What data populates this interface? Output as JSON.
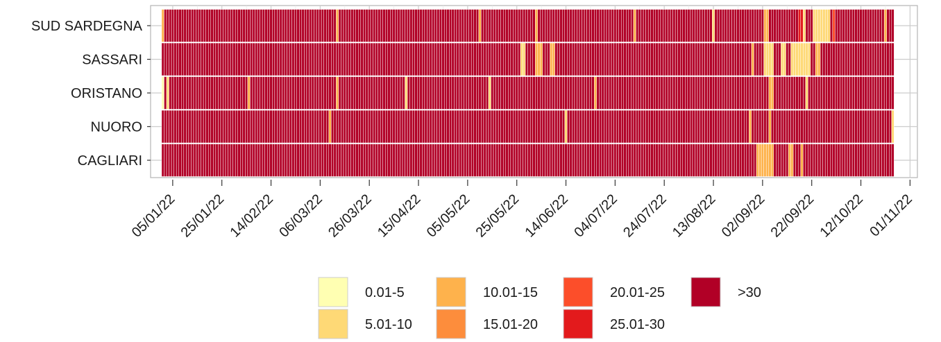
{
  "chart_data": {
    "type": "heatmap",
    "title": "",
    "xlabel": "",
    "ylabel": "",
    "rows": [
      "SUD SARDEGNA",
      "SASSARI",
      "ORISTANO",
      "NUORO",
      "CAGLIARI"
    ],
    "x_ticks": [
      "05/01/22",
      "25/01/22",
      "14/02/22",
      "06/03/22",
      "26/03/22",
      "15/04/22",
      "05/05/22",
      "25/05/22",
      "14/06/22",
      "04/07/22",
      "24/07/22",
      "13/08/22",
      "02/09/22",
      "22/09/22",
      "12/10/22",
      "01/11/22"
    ],
    "x_range": [
      "2021-12-27",
      "2022-11-04"
    ],
    "date_range": [
      "2022-01-01",
      "2022-10-25"
    ],
    "grid": true,
    "legend_position": "bottom",
    "color_scale": [
      {
        "label": "0.01-5",
        "color": "#ffffb2"
      },
      {
        "label": "5.01-10",
        "color": "#fed976"
      },
      {
        "label": "10.01-15",
        "color": "#feb24c"
      },
      {
        "label": "15.01-20",
        "color": "#fd8d3c"
      },
      {
        "label": "20.01-25",
        "color": "#fc4e2a"
      },
      {
        "label": "25.01-30",
        "color": "#e31a1c"
      },
      {
        "label": ">30",
        "color": "#b10026"
      }
    ],
    "series": [
      {
        "name": "SUD SARDEGNA",
        "values": [],
        "segments": [
          {
            "start": "2022-01-01",
            "end": "2022-10-25",
            "level": 7
          },
          {
            "start": "2022-01-01",
            "end": "2022-01-01",
            "level": 3
          },
          {
            "start": "2022-03-13",
            "end": "2022-03-13",
            "level": 3
          },
          {
            "start": "2022-05-10",
            "end": "2022-05-10",
            "level": 3
          },
          {
            "start": "2022-06-02",
            "end": "2022-06-02",
            "level": 3
          },
          {
            "start": "2022-07-12",
            "end": "2022-07-12",
            "level": 3
          },
          {
            "start": "2022-08-13",
            "end": "2022-08-13",
            "level": 2
          },
          {
            "start": "2022-09-03",
            "end": "2022-09-04",
            "level": 3
          },
          {
            "start": "2022-09-17",
            "end": "2022-09-18",
            "level": 6
          },
          {
            "start": "2022-09-19",
            "end": "2022-09-19",
            "level": 2
          },
          {
            "start": "2022-09-23",
            "end": "2022-09-29",
            "level": 2
          },
          {
            "start": "2022-10-01",
            "end": "2022-10-01",
            "level": 5
          },
          {
            "start": "2022-10-22",
            "end": "2022-10-22",
            "level": 3
          }
        ]
      },
      {
        "name": "SASSARI",
        "values": [],
        "segments": [
          {
            "start": "2022-01-01",
            "end": "2022-10-25",
            "level": 7
          },
          {
            "start": "2022-05-27",
            "end": "2022-05-28",
            "level": 2
          },
          {
            "start": "2022-06-02",
            "end": "2022-06-04",
            "level": 3
          },
          {
            "start": "2022-06-08",
            "end": "2022-06-09",
            "level": 3
          },
          {
            "start": "2022-08-29",
            "end": "2022-08-29",
            "level": 3
          },
          {
            "start": "2022-09-03",
            "end": "2022-09-06",
            "level": 2
          },
          {
            "start": "2022-09-10",
            "end": "2022-09-11",
            "level": 2
          },
          {
            "start": "2022-09-14",
            "end": "2022-09-21",
            "level": 2
          },
          {
            "start": "2022-09-24",
            "end": "2022-09-25",
            "level": 3
          }
        ]
      },
      {
        "name": "ORISTANO",
        "values": [],
        "segments": [
          {
            "start": "2022-01-01",
            "end": "2022-10-25",
            "level": 7
          },
          {
            "start": "2022-01-01",
            "end": "2022-01-01",
            "level": 1
          },
          {
            "start": "2022-01-03",
            "end": "2022-01-03",
            "level": 2
          },
          {
            "start": "2022-02-05",
            "end": "2022-02-05",
            "level": 3
          },
          {
            "start": "2022-03-13",
            "end": "2022-03-13",
            "level": 3
          },
          {
            "start": "2022-04-10",
            "end": "2022-04-10",
            "level": 2
          },
          {
            "start": "2022-05-14",
            "end": "2022-05-14",
            "level": 2
          },
          {
            "start": "2022-06-26",
            "end": "2022-06-26",
            "level": 3
          },
          {
            "start": "2022-09-05",
            "end": "2022-09-06",
            "level": 3
          },
          {
            "start": "2022-09-20",
            "end": "2022-09-20",
            "level": 2
          }
        ]
      },
      {
        "name": "NUORO",
        "values": [],
        "segments": [
          {
            "start": "2022-01-01",
            "end": "2022-10-25",
            "level": 7
          },
          {
            "start": "2022-03-10",
            "end": "2022-03-10",
            "level": 3
          },
          {
            "start": "2022-06-14",
            "end": "2022-06-14",
            "level": 2
          },
          {
            "start": "2022-08-28",
            "end": "2022-08-28",
            "level": 3
          },
          {
            "start": "2022-09-05",
            "end": "2022-09-05",
            "level": 3
          },
          {
            "start": "2022-10-25",
            "end": "2022-10-25",
            "level": 2
          }
        ]
      },
      {
        "name": "CAGLIARI",
        "values": [],
        "segments": [
          {
            "start": "2022-01-01",
            "end": "2022-10-25",
            "level": 7
          },
          {
            "start": "2022-08-31",
            "end": "2022-09-06",
            "level": 3
          },
          {
            "start": "2022-09-13",
            "end": "2022-09-14",
            "level": 3
          },
          {
            "start": "2022-09-18",
            "end": "2022-09-18",
            "level": 3
          }
        ]
      }
    ]
  }
}
